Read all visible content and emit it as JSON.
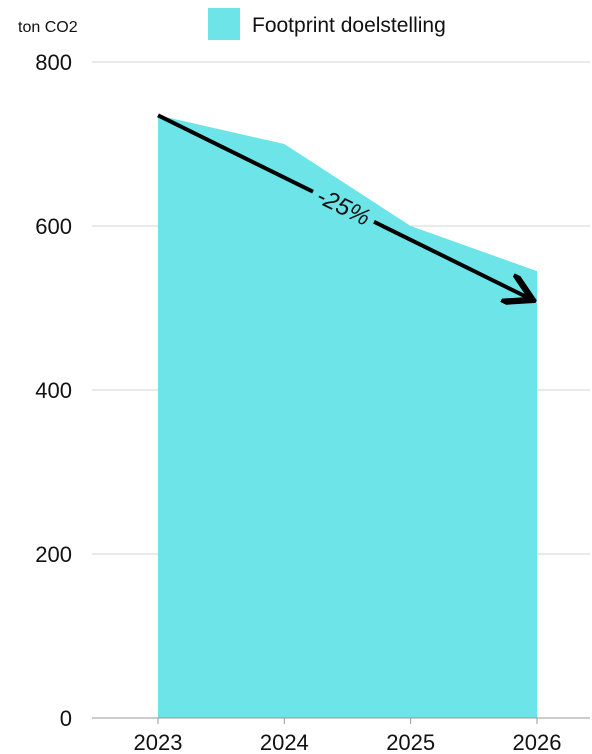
{
  "chart_data": {
    "type": "area",
    "ylabel": "ton CO2",
    "x": [
      "2023",
      "2024",
      "2025",
      "2026"
    ],
    "series": [
      {
        "name": "Footprint doelstelling",
        "values": [
          735,
          700,
          600,
          545
        ],
        "color": "#6ce4e8"
      }
    ],
    "ylim": [
      0,
      800
    ],
    "yticks": [
      0,
      200,
      400,
      600,
      800
    ],
    "grid": true,
    "legend_position": "top",
    "annotation": {
      "text": "-25%",
      "from": {
        "x": "2023",
        "y": 735
      },
      "to": {
        "x": "2026",
        "y": 512
      }
    }
  }
}
